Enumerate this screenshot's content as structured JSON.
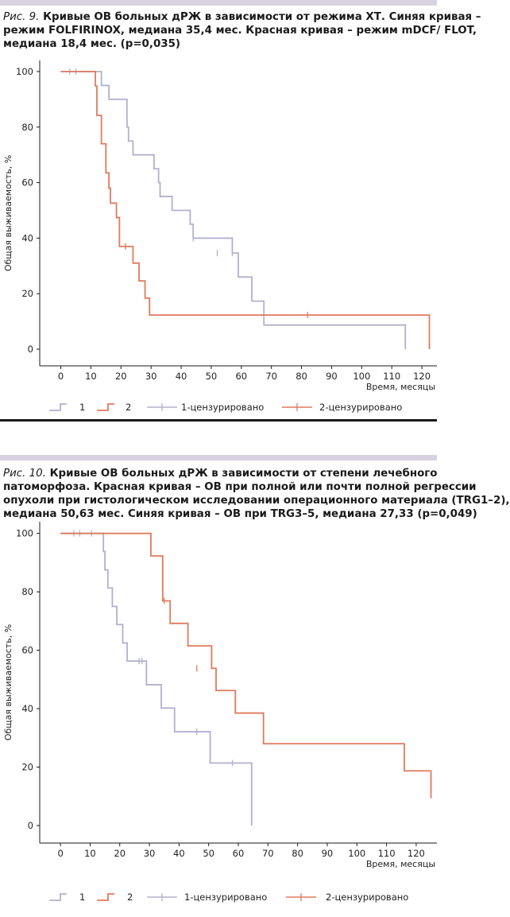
{
  "figures": [
    {
      "label": "Рис. 9.",
      "caption_lines": [
        " Кривые ОВ больных дРЖ в зависимости от режима ХТ. Синяя кривая –",
        "режим FOLFIRINOX, медиана 35,4 мес. Красная кривая – режим mDCF/ FLOT,",
        "медиана 18,4 мес. (p=0,035)"
      ]
    },
    {
      "label": "Рис. 10.",
      "caption_lines": [
        " Кривые ОВ больных дРЖ в зависимости от степени лечебного",
        "патоморфоза. Красная кривая – ОВ при полной или почти полной регрессии",
        "опухоли при гистологическом исследовании операционного материала (TRG1–2),",
        "медиана 50,63 мес. Синяя кривая – ОВ при TRG3–5, медиана 27,33 (p=0,049)"
      ]
    }
  ],
  "colors": {
    "series_1": "#b3b0cf",
    "series_2": "#e07a5f",
    "axis": "#1a1a1a",
    "rule": "#d6d2e0"
  },
  "chart_data": [
    {
      "type": "line",
      "title": "",
      "xlabel": "Время, месяцы",
      "ylabel": "Общая выживаемость, %",
      "xlim": [
        -7,
        125
      ],
      "ylim": [
        -6,
        104
      ],
      "xticks": [
        0,
        10,
        20,
        30,
        40,
        50,
        60,
        70,
        80,
        90,
        100,
        110,
        120
      ],
      "yticks": [
        0,
        20,
        40,
        60,
        80,
        100
      ],
      "legend_position": "bottom",
      "legend": [
        "1",
        "2",
        "1-цензурировано",
        "2-цензурировано"
      ],
      "series": [
        {
          "name": "1",
          "x": [
            0,
            10.5,
            12.5,
            13.5,
            14,
            16,
            17,
            21.5,
            22,
            22.5,
            24,
            29.5,
            31,
            32.5,
            33,
            34,
            37,
            40.5,
            43,
            44,
            45,
            50.5,
            57,
            58,
            59,
            63.5,
            67.5,
            68,
            114.5
          ],
          "y": [
            100,
            100,
            100,
            95,
            95,
            90,
            90,
            90,
            80,
            75,
            70,
            70,
            65,
            60,
            55,
            55,
            50,
            50,
            45,
            40,
            40,
            40,
            34.6,
            34.6,
            26,
            17.3,
            8.7,
            8.7,
            0
          ],
          "censored": [
            [
              3,
              100
            ],
            [
              5,
              100
            ],
            [
              44,
              40
            ],
            [
              52,
              34.6
            ],
            [
              57,
              34.6
            ]
          ]
        },
        {
          "name": "2",
          "x": [
            0,
            10.5,
            11.5,
            12,
            13.5,
            15,
            16,
            16.5,
            18.5,
            19.5,
            20,
            24,
            26,
            28,
            29.5,
            122.5
          ],
          "y": [
            100,
            100,
            94.8,
            84.2,
            74,
            63.5,
            58,
            52.6,
            47.4,
            37,
            37,
            31,
            24.6,
            18.4,
            12.3,
            0
          ],
          "censored": [
            [
              21.5,
              37
            ],
            [
              82,
              12.3
            ]
          ]
        }
      ]
    },
    {
      "type": "line",
      "title": "",
      "xlabel": "Время, месяцы",
      "ylabel": "Общая выживаемость, %",
      "xlim": [
        -7,
        127
      ],
      "ylim": [
        -6,
        104
      ],
      "xticks": [
        0,
        10,
        20,
        30,
        40,
        50,
        60,
        70,
        80,
        90,
        100,
        110,
        120
      ],
      "yticks": [
        0,
        20,
        40,
        60,
        80,
        100
      ],
      "legend_position": "bottom",
      "legend": [
        "1",
        "2",
        "1-цензурировано",
        "2-цензурировано"
      ],
      "series": [
        {
          "name": "1",
          "x": [
            0,
            11,
            14.5,
            15,
            16,
            17.5,
            19,
            21,
            22.5,
            27.5,
            29,
            34,
            38.5,
            50.5,
            64.5
          ],
          "y": [
            100,
            100,
            93.8,
            87.5,
            81.3,
            75,
            68.8,
            62.5,
            56.3,
            56.3,
            48.2,
            40.2,
            32.1,
            21.4,
            0
          ],
          "censored": [
            [
              4.5,
              100
            ],
            [
              6.5,
              100
            ],
            [
              10.5,
              100
            ],
            [
              26.5,
              56.3
            ],
            [
              27.5,
              56.3
            ],
            [
              46,
              32.1
            ],
            [
              58,
              21.4
            ]
          ]
        },
        {
          "name": "2",
          "x": [
            0,
            22,
            30.5,
            34.5,
            37,
            43,
            51,
            52.5,
            59,
            68.5,
            116,
            125
          ],
          "y": [
            100,
            100,
            92.3,
            76.9,
            69.2,
            61.5,
            53.8,
            46.2,
            38.5,
            28,
            18.7,
            9.3
          ],
          "censored": [
            [
              35,
              76.9
            ],
            [
              46,
              53.8
            ]
          ]
        }
      ]
    }
  ]
}
